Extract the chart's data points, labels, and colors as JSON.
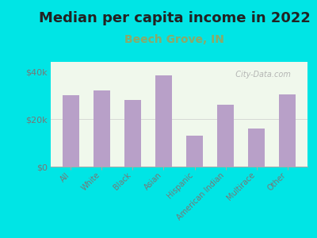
{
  "title": "Median per capita income in 2022",
  "subtitle": "Beech Grove, IN",
  "categories": [
    "All",
    "White",
    "Black",
    "Asian",
    "Hispanic",
    "American Indian",
    "Multirace",
    "Other"
  ],
  "values": [
    30000,
    32000,
    28000,
    38500,
    13000,
    26000,
    16000,
    30500
  ],
  "bar_color": "#b8a0c8",
  "background_color": "#00e5e5",
  "plot_bg_color": "#eef7e8",
  "title_fontsize": 13,
  "title_color": "#222222",
  "subtitle_fontsize": 10,
  "subtitle_color": "#8aaa6a",
  "tick_label_color": "#777777",
  "watermark": "  City-Data.com",
  "ylim": [
    0,
    44000
  ],
  "yticks": [
    0,
    20000,
    40000
  ],
  "ytick_labels": [
    "$0",
    "$20k",
    "$40k"
  ]
}
